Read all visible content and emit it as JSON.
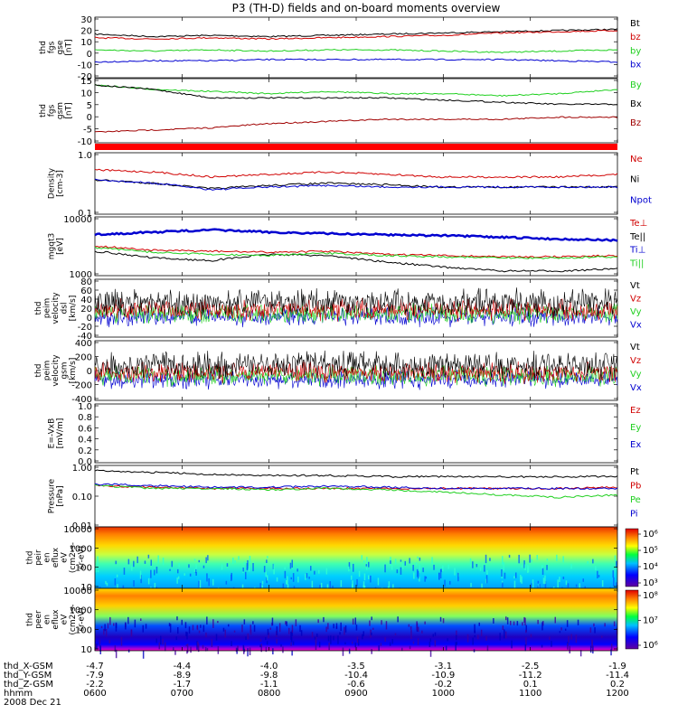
{
  "title": "P3 (TH-D) fields and on-board moments overview",
  "date": "2008 Dec 21",
  "panels": [
    {
      "id": "fgs-gse",
      "ylabel": [
        "thd",
        "fgs",
        "gse",
        "[nT]"
      ],
      "ticks": [
        "30",
        "20",
        "10",
        "0",
        "-10",
        "-20"
      ],
      "series": [
        {
          "name": "Bt",
          "color": "#000000"
        },
        {
          "name": "bz",
          "color": "#d00000"
        },
        {
          "name": "by",
          "color": "#20d020"
        },
        {
          "name": "bx",
          "color": "#0000d0"
        }
      ]
    },
    {
      "id": "fgs-gsm",
      "ylabel": [
        "thd",
        "fgs",
        "gsm",
        "[nT]"
      ],
      "ticks": [
        "15",
        "10",
        "5",
        "0",
        "-5",
        "-10"
      ],
      "series": [
        {
          "name": "By",
          "color": "#20d020"
        },
        {
          "name": "Bx",
          "color": "#000000"
        },
        {
          "name": "Bz",
          "color": "#a00000"
        }
      ]
    },
    {
      "id": "density",
      "ylabel": [
        "Density",
        "[cm-3]"
      ],
      "ticks": [
        "1.0",
        "0.1"
      ],
      "series": [
        {
          "name": "Ne",
          "color": "#d00000"
        },
        {
          "name": "Ni",
          "color": "#000000"
        },
        {
          "name": "Npot",
          "color": "#0000d0"
        }
      ]
    },
    {
      "id": "temperature",
      "ylabel": [
        "mgqt3",
        "[eV]"
      ],
      "ticks": [
        "10000",
        "1000"
      ],
      "series": [
        {
          "name": "Te⊥",
          "color": "#d00000"
        },
        {
          "name": "Te||",
          "color": "#000000"
        },
        {
          "name": "Ti⊥",
          "color": "#0000d0"
        },
        {
          "name": "Ti||",
          "color": "#20d020"
        }
      ]
    },
    {
      "id": "peim-dsl",
      "ylabel": [
        "thd",
        "peim",
        "velocity",
        "dsl",
        "[km/s]"
      ],
      "ticks": [
        "80",
        "60",
        "40",
        "20",
        "0",
        "-20",
        "-40"
      ],
      "series": [
        {
          "name": "Vt",
          "color": "#000000"
        },
        {
          "name": "Vz",
          "color": "#d00000"
        },
        {
          "name": "Vy",
          "color": "#20d020"
        },
        {
          "name": "Vx",
          "color": "#0000d0"
        }
      ]
    },
    {
      "id": "peim-gsm",
      "ylabel": [
        "thd",
        "peim",
        "velocity",
        "gsm",
        "[km/s]"
      ],
      "ticks": [
        "400",
        "200",
        "0",
        "-200",
        "-400"
      ],
      "series": [
        {
          "name": "Vt",
          "color": "#000000"
        },
        {
          "name": "Vz",
          "color": "#d00000"
        },
        {
          "name": "Vy",
          "color": "#20d020"
        },
        {
          "name": "Vx",
          "color": "#0000d0"
        }
      ]
    },
    {
      "id": "efield",
      "ylabel": [
        "E=-VxB",
        "[mV/m]"
      ],
      "ticks": [
        "1.0",
        "0.8",
        "0.6",
        "0.4",
        "0.2",
        "0.0"
      ],
      "series": [
        {
          "name": "Ez",
          "color": "#d00000"
        },
        {
          "name": "Ey",
          "color": "#20d020"
        },
        {
          "name": "Ex",
          "color": "#0000d0"
        }
      ]
    },
    {
      "id": "pressure",
      "ylabel": [
        "Pressure",
        "[nPa]"
      ],
      "ticks": [
        "1.00",
        "0.10",
        "0.01"
      ],
      "series": [
        {
          "name": "Pt",
          "color": "#000000"
        },
        {
          "name": "Pb",
          "color": "#d00000"
        },
        {
          "name": "Pe",
          "color": "#20d020"
        },
        {
          "name": "Pi",
          "color": "#0000d0"
        }
      ]
    },
    {
      "id": "peir-eflux",
      "ylabel": [
        "thd",
        "peir",
        "en",
        "eflux",
        "eV",
        "(cm2-s-",
        "sr-eV)"
      ],
      "ticks": [
        "10000",
        "1000",
        "100",
        "10"
      ],
      "colorbar": [
        "10⁶",
        "10⁵",
        "10⁴",
        "10³"
      ]
    },
    {
      "id": "peer-eflux",
      "ylabel": [
        "thd",
        "peer",
        "en",
        "eflux",
        "eV",
        "(cm2-s-",
        "sr-eV)"
      ],
      "ticks": [
        "10000",
        "1000",
        "100",
        "10"
      ],
      "colorbar": [
        "10⁸",
        "10⁷",
        "10⁶"
      ]
    }
  ],
  "chart_data": {
    "type": "line",
    "title": "P3 (TH-D) fields and on-board moments overview",
    "x_tick_labels": [
      "0600",
      "0700",
      "0800",
      "0900",
      "1000",
      "1100",
      "1200"
    ],
    "xlabel": "hhmm",
    "date": "2008 Dec 21",
    "ephemeris": [
      {
        "label": "thd_X-GSM",
        "values": [
          "-4.7",
          "-4.4",
          "-4.0",
          "-3.5",
          "-3.1",
          "-2.5",
          "-1.9"
        ]
      },
      {
        "label": "thd_Y-GSM",
        "values": [
          "-7.9",
          "-8.9",
          "-9.8",
          "-10.4",
          "-10.9",
          "-11.2",
          "-11.4"
        ]
      },
      {
        "label": "thd_Z-GSM",
        "values": [
          "-2.2",
          "-1.7",
          "-1.1",
          "-0.6",
          "-0.2",
          "0.1",
          "0.2"
        ]
      }
    ],
    "series_profiles": [
      {
        "panel": "fgs-gse",
        "series": "Bt",
        "ylim": [
          -20,
          30
        ],
        "values": [
          16,
          14,
          15,
          14,
          15,
          16,
          17,
          18,
          19,
          20
        ]
      },
      {
        "panel": "fgs-gse",
        "series": "bz",
        "ylim": [
          -20,
          30
        ],
        "values": [
          13,
          12,
          13,
          12,
          13,
          14,
          15,
          17,
          18,
          19
        ]
      },
      {
        "panel": "fgs-gse",
        "series": "by",
        "ylim": [
          -20,
          30
        ],
        "values": [
          3,
          2,
          3,
          2,
          3,
          3,
          2,
          1,
          2,
          3
        ]
      },
      {
        "panel": "fgs-gse",
        "series": "bx",
        "ylim": [
          -20,
          30
        ],
        "values": [
          -7,
          -6,
          -6,
          -5,
          -5,
          -5,
          -5,
          -5,
          -6,
          -7
        ]
      },
      {
        "panel": "fgs-gsm",
        "series": "By",
        "ylim": [
          -15,
          15
        ],
        "values": [
          12,
          10,
          9,
          8,
          9,
          8,
          8,
          7,
          8,
          10
        ]
      },
      {
        "panel": "fgs-gsm",
        "series": "Bx",
        "ylim": [
          -15,
          15
        ],
        "values": [
          12,
          10,
          6,
          6,
          6,
          6,
          5,
          4,
          3,
          3
        ]
      },
      {
        "panel": "fgs-gsm",
        "series": "Bz",
        "ylim": [
          -15,
          15
        ],
        "values": [
          -10,
          -9,
          -8,
          -6,
          -5,
          -4,
          -4,
          -4,
          -3,
          -3
        ]
      },
      {
        "panel": "density",
        "series": "Ne",
        "ylim": [
          0.1,
          1.2
        ],
        "values": [
          0.6,
          0.55,
          0.45,
          0.5,
          0.55,
          0.5,
          0.45,
          0.45,
          0.45,
          0.5
        ]
      },
      {
        "panel": "density",
        "series": "Ni",
        "ylim": [
          0.1,
          1.2
        ],
        "values": [
          0.4,
          0.35,
          0.28,
          0.32,
          0.35,
          0.33,
          0.3,
          0.3,
          0.3,
          0.3
        ]
      },
      {
        "panel": "density",
        "series": "Npot",
        "ylim": [
          0.1,
          1.2
        ],
        "values": [
          0.4,
          0.35,
          0.27,
          0.3,
          0.32,
          0.3,
          0.3,
          0.3,
          0.3,
          0.3
        ]
      },
      {
        "panel": "temperature",
        "series": "Ti⊥",
        "ylim": [
          1000,
          10000
        ],
        "values": [
          5000,
          5500,
          6000,
          5500,
          5200,
          5000,
          4800,
          4500,
          4200,
          4000
        ]
      },
      {
        "panel": "temperature",
        "series": "Ti||",
        "ylim": [
          1000,
          10000
        ],
        "values": [
          3000,
          2500,
          2300,
          2200,
          2400,
          2200,
          2100,
          2000,
          2000,
          2100
        ]
      },
      {
        "panel": "temperature",
        "series": "Te⊥",
        "ylim": [
          1000,
          10000
        ],
        "values": [
          3200,
          2700,
          2600,
          2500,
          2600,
          2300,
          2200,
          2100,
          2100,
          2200
        ]
      },
      {
        "panel": "temperature",
        "series": "Te||",
        "ylim": [
          1000,
          10000
        ],
        "values": [
          2600,
          2000,
          1800,
          2300,
          2200,
          1700,
          1400,
          1200,
          1200,
          1300
        ]
      },
      {
        "panel": "pressure",
        "series": "Pt",
        "ylim": [
          0.01,
          1.2
        ],
        "values": [
          0.8,
          0.7,
          0.6,
          0.55,
          0.55,
          0.5,
          0.5,
          0.5,
          0.5,
          0.5
        ]
      },
      {
        "panel": "pressure",
        "series": "Pb",
        "ylim": [
          0.01,
          1.2
        ],
        "values": [
          0.25,
          0.22,
          0.2,
          0.2,
          0.2,
          0.2,
          0.2,
          0.2,
          0.2,
          0.22
        ]
      },
      {
        "panel": "pressure",
        "series": "Pe",
        "ylim": [
          0.01,
          1.2
        ],
        "values": [
          0.25,
          0.2,
          0.2,
          0.18,
          0.2,
          0.18,
          0.15,
          0.12,
          0.1,
          0.12
        ]
      },
      {
        "panel": "pressure",
        "series": "Pi",
        "ylim": [
          0.01,
          1.2
        ],
        "values": [
          0.28,
          0.25,
          0.22,
          0.22,
          0.24,
          0.22,
          0.2,
          0.2,
          0.2,
          0.2
        ]
      }
    ]
  },
  "colors": {
    "band_red": "#ff0000"
  }
}
